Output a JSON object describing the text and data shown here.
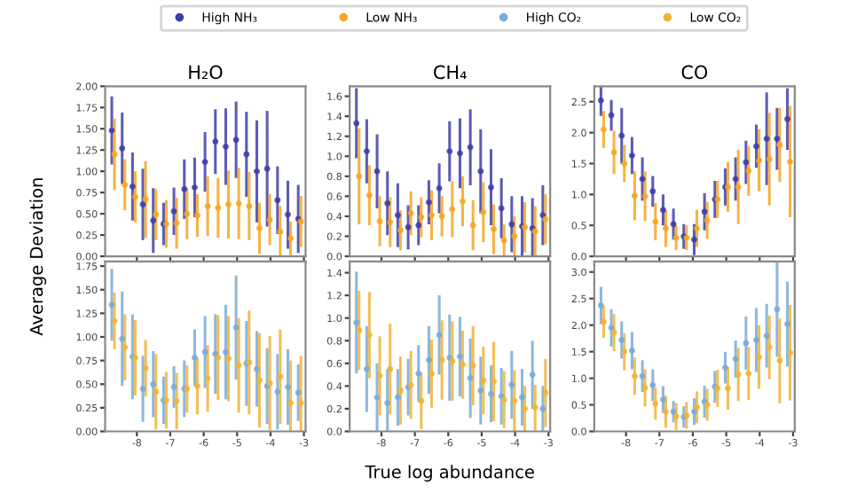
{
  "chart_data": [
    {
      "type": "scatter",
      "title": "H₂O",
      "ylabel": "Average Deviation",
      "x": [
        -8.75,
        -8.44,
        -8.13,
        -7.82,
        -7.51,
        -7.2,
        -6.89,
        -6.58,
        -6.27,
        -5.96,
        -5.65,
        -5.34,
        -5.03,
        -4.72,
        -4.41,
        -4.1,
        -3.79,
        -3.48,
        -3.17
      ],
      "xlim": [
        -8.95,
        -2.95
      ],
      "xticks": [
        -8,
        -7,
        -6,
        -5,
        -4,
        -3
      ],
      "ylim": [
        0,
        2.0
      ],
      "yticks": [
        {
          "value": 0,
          "label": "0.00"
        },
        {
          "value": 0.25,
          "label": "0.25"
        },
        {
          "value": 0.5,
          "label": "0.50"
        },
        {
          "value": 0.75,
          "label": "0.75"
        },
        {
          "value": 1.0,
          "label": "1.00"
        },
        {
          "value": 1.25,
          "label": "1.25"
        },
        {
          "value": 1.5,
          "label": "1.50"
        },
        {
          "value": 1.75,
          "label": "1.75"
        },
        {
          "value": 2.0,
          "label": "2.00"
        }
      ],
      "tick_labels": "y",
      "marker": "circle",
      "grid": false,
      "legend": "top",
      "series": [
        {
          "name": "High NH₃",
          "color": "#3f3fa8",
          "values": [
            1.48,
            1.27,
            0.82,
            0.61,
            0.42,
            0.38,
            0.53,
            0.79,
            0.81,
            1.11,
            1.35,
            1.29,
            1.37,
            1.2,
            1.0,
            1.03,
            0.66,
            0.49,
            0.44
          ],
          "errors": [
            0.4,
            0.42,
            0.4,
            0.42,
            0.38,
            0.25,
            0.28,
            0.35,
            0.35,
            0.35,
            0.38,
            0.45,
            0.45,
            0.5,
            0.6,
            0.68,
            0.4,
            0.4,
            0.4
          ]
        },
        {
          "name": "Low NH₃",
          "color": "#f5a623",
          "x": [
            -8.67,
            -8.36,
            -8.05,
            -7.74,
            -7.43,
            -7.12,
            -6.81,
            -6.5,
            -6.19,
            -5.88,
            -5.57,
            -5.26,
            -4.95,
            -4.64,
            -4.33,
            -4.02,
            -3.71,
            -3.4,
            -3.09
          ],
          "values": [
            1.2,
            0.84,
            0.7,
            0.67,
            0.49,
            0.38,
            0.39,
            0.5,
            0.48,
            0.59,
            0.57,
            0.61,
            0.62,
            0.59,
            0.33,
            0.43,
            0.29,
            0.21,
            0.41
          ],
          "errors": [
            0.42,
            0.3,
            0.3,
            0.45,
            0.3,
            0.28,
            0.3,
            0.3,
            0.25,
            0.35,
            0.35,
            0.4,
            0.42,
            0.4,
            0.3,
            0.3,
            0.3,
            0.2,
            0.3
          ]
        }
      ]
    },
    {
      "type": "scatter",
      "title": "CH₄",
      "x": [
        -8.75,
        -8.44,
        -8.13,
        -7.82,
        -7.51,
        -7.2,
        -6.89,
        -6.58,
        -6.27,
        -5.96,
        -5.65,
        -5.34,
        -5.03,
        -4.72,
        -4.41,
        -4.1,
        -3.79,
        -3.48,
        -3.17
      ],
      "xlim": [
        -8.95,
        -2.95
      ],
      "xticks": [
        -8,
        -7,
        -6,
        -5,
        -4,
        -3
      ],
      "ylim": [
        0,
        1.7
      ],
      "yticks": [
        {
          "value": 0,
          "label": "0.0"
        },
        {
          "value": 0.2,
          "label": "0.2"
        },
        {
          "value": 0.4,
          "label": "0.4"
        },
        {
          "value": 0.6,
          "label": "0.6"
        },
        {
          "value": 0.8,
          "label": "0.8"
        },
        {
          "value": 1.0,
          "label": "1.0"
        },
        {
          "value": 1.2,
          "label": "1.2"
        },
        {
          "value": 1.4,
          "label": "1.4"
        },
        {
          "value": 1.6,
          "label": "1.6"
        }
      ],
      "tick_labels": "y",
      "marker": "circle",
      "grid": false,
      "series": [
        {
          "name": "High NH₃",
          "color": "#3f3fa8",
          "values": [
            1.33,
            1.05,
            0.85,
            0.53,
            0.41,
            0.29,
            0.31,
            0.54,
            0.68,
            1.05,
            1.03,
            1.09,
            0.85,
            0.69,
            0.48,
            0.32,
            0.3,
            0.28,
            0.41
          ],
          "errors": [
            0.35,
            0.32,
            0.37,
            0.32,
            0.32,
            0.22,
            0.2,
            0.22,
            0.25,
            0.3,
            0.35,
            0.38,
            0.42,
            0.38,
            0.3,
            0.28,
            0.3,
            0.3,
            0.3
          ]
        },
        {
          "name": "Low NH₃",
          "color": "#f5a623",
          "x": [
            -8.67,
            -8.36,
            -8.05,
            -7.74,
            -7.43,
            -7.12,
            -6.81,
            -6.5,
            -6.19,
            -5.88,
            -5.57,
            -5.26,
            -4.95,
            -4.64,
            -4.33,
            -4.02,
            -3.71,
            -3.4,
            -3.09
          ],
          "values": [
            0.8,
            0.61,
            0.35,
            0.34,
            0.26,
            0.43,
            0.39,
            0.41,
            0.4,
            0.47,
            0.55,
            0.31,
            0.44,
            0.27,
            0.16,
            0.2,
            0.29,
            0.25,
            0.37
          ],
          "errors": [
            0.48,
            0.3,
            0.25,
            0.25,
            0.2,
            0.22,
            0.2,
            0.25,
            0.2,
            0.28,
            0.25,
            0.25,
            0.3,
            0.25,
            0.16,
            0.2,
            0.25,
            0.25,
            0.25
          ]
        }
      ]
    },
    {
      "type": "scatter",
      "title": "CO",
      "x": [
        -8.75,
        -8.44,
        -8.13,
        -7.82,
        -7.51,
        -7.2,
        -6.89,
        -6.58,
        -6.27,
        -5.96,
        -5.65,
        -5.34,
        -5.03,
        -4.72,
        -4.41,
        -4.1,
        -3.79,
        -3.48,
        -3.17
      ],
      "xlim": [
        -8.95,
        -2.95
      ],
      "xticks": [
        -8,
        -7,
        -6,
        -5,
        -4,
        -3
      ],
      "ylim": [
        0,
        2.75
      ],
      "yticks": [
        {
          "value": 0,
          "label": "0.0"
        },
        {
          "value": 0.5,
          "label": "0.5"
        },
        {
          "value": 1.0,
          "label": "1.0"
        },
        {
          "value": 1.5,
          "label": "1.5"
        },
        {
          "value": 2.0,
          "label": "2.0"
        },
        {
          "value": 2.5,
          "label": "2.5"
        }
      ],
      "tick_labels": "y",
      "marker": "circle",
      "grid": false,
      "series": [
        {
          "name": "High NH₃",
          "color": "#3f3fa8",
          "values": [
            2.52,
            2.28,
            1.95,
            1.63,
            1.25,
            1.05,
            0.75,
            0.52,
            0.32,
            0.27,
            0.72,
            0.92,
            1.12,
            1.25,
            1.52,
            1.78,
            1.9,
            1.9,
            2.22
          ],
          "errors": [
            0.25,
            0.25,
            0.45,
            0.3,
            0.35,
            0.25,
            0.25,
            0.25,
            0.2,
            0.25,
            0.3,
            0.3,
            0.3,
            0.35,
            0.35,
            0.35,
            0.75,
            0.5,
            0.5
          ]
        },
        {
          "name": "Low NH₃",
          "color": "#f5a623",
          "x": [
            -8.67,
            -8.36,
            -8.05,
            -7.74,
            -7.43,
            -7.12,
            -6.81,
            -6.5,
            -6.19,
            -5.88,
            -5.57,
            -5.26,
            -4.95,
            -4.64,
            -4.33,
            -4.02,
            -3.71,
            -3.4,
            -3.09
          ],
          "values": [
            2.05,
            1.68,
            1.5,
            0.98,
            0.97,
            0.56,
            0.45,
            0.3,
            0.3,
            0.45,
            0.58,
            0.92,
            1.12,
            1.12,
            1.38,
            1.55,
            1.57,
            1.8,
            1.53
          ],
          "errors": [
            0.3,
            0.35,
            0.3,
            0.4,
            0.4,
            0.3,
            0.3,
            0.2,
            0.2,
            0.3,
            0.3,
            0.3,
            0.4,
            0.6,
            0.4,
            0.5,
            0.75,
            0.6,
            0.9
          ]
        }
      ]
    },
    {
      "type": "scatter",
      "x": [
        -8.75,
        -8.44,
        -8.13,
        -7.82,
        -7.51,
        -7.2,
        -6.89,
        -6.58,
        -6.27,
        -5.96,
        -5.65,
        -5.34,
        -5.03,
        -4.72,
        -4.41,
        -4.1,
        -3.79,
        -3.48,
        -3.17
      ],
      "xlim": [
        -8.95,
        -2.95
      ],
      "xticks": [
        -8,
        -7,
        -6,
        -5,
        -4,
        -3
      ],
      "ylim": [
        0,
        1.8
      ],
      "yticks": [
        {
          "value": 0,
          "label": "0.00"
        },
        {
          "value": 0.25,
          "label": "0.25"
        },
        {
          "value": 0.5,
          "label": "0.50"
        },
        {
          "value": 0.75,
          "label": "0.75"
        },
        {
          "value": 1.0,
          "label": "1.00"
        },
        {
          "value": 1.25,
          "label": "1.25"
        },
        {
          "value": 1.5,
          "label": "1.50"
        },
        {
          "value": 1.75,
          "label": "1.75"
        }
      ],
      "marker": "circle",
      "grid": false,
      "legend": "top",
      "series": [
        {
          "name": "High CO₂",
          "color": "#7aaad6",
          "values": [
            1.34,
            0.98,
            0.79,
            0.45,
            0.5,
            0.33,
            0.47,
            0.45,
            0.78,
            0.84,
            0.82,
            0.84,
            1.1,
            0.72,
            0.66,
            0.48,
            0.42,
            0.47,
            0.41
          ],
          "errors": [
            0.38,
            0.5,
            0.45,
            0.35,
            0.35,
            0.25,
            0.22,
            0.3,
            0.3,
            0.38,
            0.42,
            0.5,
            0.55,
            0.45,
            0.4,
            0.4,
            0.4,
            0.4,
            0.3
          ]
        },
        {
          "name": "Low CO₂",
          "color": "#eeb43a",
          "x": [
            -8.67,
            -8.36,
            -8.05,
            -7.74,
            -7.43,
            -7.12,
            -6.81,
            -6.5,
            -6.19,
            -5.88,
            -5.57,
            -5.26,
            -4.95,
            -4.64,
            -4.33,
            -4.02,
            -3.71,
            -3.4,
            -3.09
          ],
          "values": [
            1.17,
            0.89,
            0.78,
            0.67,
            0.42,
            0.33,
            0.32,
            0.45,
            0.48,
            0.56,
            0.78,
            0.77,
            0.7,
            0.73,
            0.54,
            0.51,
            0.58,
            0.3,
            0.3
          ],
          "errors": [
            0.3,
            0.35,
            0.4,
            0.3,
            0.4,
            0.3,
            0.3,
            0.25,
            0.3,
            0.35,
            0.45,
            0.45,
            0.5,
            0.55,
            0.5,
            0.5,
            0.5,
            0.45,
            0.5
          ]
        }
      ]
    },
    {
      "type": "scatter",
      "xlabel": "True log abundance",
      "x": [
        -8.75,
        -8.44,
        -8.13,
        -7.82,
        -7.51,
        -7.2,
        -6.89,
        -6.58,
        -6.27,
        -5.96,
        -5.65,
        -5.34,
        -5.03,
        -4.72,
        -4.41,
        -4.1,
        -3.79,
        -3.48,
        -3.17
      ],
      "xlim": [
        -8.95,
        -2.95
      ],
      "xticks": [
        -8,
        -7,
        -6,
        -5,
        -4,
        -3
      ],
      "ylim": [
        0,
        1.5
      ],
      "yticks": [
        {
          "value": 0,
          "label": "0.0"
        },
        {
          "value": 0.2,
          "label": "0.2"
        },
        {
          "value": 0.4,
          "label": "0.4"
        },
        {
          "value": 0.6,
          "label": "0.6"
        },
        {
          "value": 0.8,
          "label": "0.8"
        },
        {
          "value": 1.0,
          "label": "1.0"
        },
        {
          "value": 1.2,
          "label": "1.2"
        },
        {
          "value": 1.4,
          "label": "1.4"
        }
      ],
      "marker": "circle",
      "grid": false,
      "series": [
        {
          "name": "High CO₂",
          "color": "#7aaad6",
          "values": [
            0.96,
            0.55,
            0.3,
            0.25,
            0.3,
            0.39,
            0.51,
            0.63,
            0.85,
            0.65,
            0.66,
            0.47,
            0.36,
            0.33,
            0.31,
            0.41,
            0.3,
            0.5,
            0.2
          ],
          "errors": [
            0.45,
            0.38,
            0.3,
            0.3,
            0.25,
            0.25,
            0.25,
            0.3,
            0.35,
            0.38,
            0.35,
            0.35,
            0.3,
            0.25,
            0.25,
            0.3,
            0.25,
            0.3,
            0.2
          ]
        },
        {
          "name": "Low CO₂",
          "color": "#eeb43a",
          "x": [
            -8.67,
            -8.36,
            -8.05,
            -7.74,
            -7.43,
            -7.12,
            -6.81,
            -6.5,
            -6.19,
            -5.88,
            -5.57,
            -5.26,
            -4.95,
            -4.64,
            -4.33,
            -4.02,
            -3.71,
            -3.4,
            -3.09
          ],
          "values": [
            0.89,
            0.85,
            0.49,
            0.55,
            0.36,
            0.41,
            0.27,
            0.51,
            0.63,
            0.62,
            0.59,
            0.58,
            0.45,
            0.44,
            0.28,
            0.27,
            0.2,
            0.21,
            0.34
          ],
          "errors": [
            0.35,
            0.38,
            0.35,
            0.4,
            0.3,
            0.3,
            0.25,
            0.3,
            0.35,
            0.35,
            0.3,
            0.35,
            0.3,
            0.35,
            0.25,
            0.27,
            0.2,
            0.2,
            0.3
          ]
        }
      ]
    },
    {
      "type": "scatter",
      "x": [
        -8.75,
        -8.44,
        -8.13,
        -7.82,
        -7.51,
        -7.2,
        -6.89,
        -6.58,
        -6.27,
        -5.96,
        -5.65,
        -5.34,
        -5.03,
        -4.72,
        -4.41,
        -4.1,
        -3.79,
        -3.48,
        -3.17
      ],
      "xlim": [
        -8.95,
        -2.95
      ],
      "xticks": [
        -8,
        -7,
        -6,
        -5,
        -4,
        -3
      ],
      "ylim": [
        0,
        3.2
      ],
      "yticks": [
        {
          "value": 0,
          "label": "0.0"
        },
        {
          "value": 0.5,
          "label": "0.5"
        },
        {
          "value": 1.0,
          "label": "1.0"
        },
        {
          "value": 1.5,
          "label": "1.5"
        },
        {
          "value": 2.0,
          "label": "2.0"
        },
        {
          "value": 2.5,
          "label": "2.5"
        },
        {
          "value": 3.0,
          "label": "3.0"
        }
      ],
      "marker": "circle",
      "grid": false,
      "series": [
        {
          "name": "High CO₂",
          "color": "#7aaad6",
          "values": [
            2.37,
            1.95,
            1.72,
            1.52,
            1.04,
            0.87,
            0.6,
            0.37,
            0.27,
            0.37,
            0.56,
            0.84,
            1.2,
            1.36,
            1.66,
            1.72,
            1.8,
            2.3,
            2.02
          ],
          "errors": [
            0.35,
            0.35,
            0.35,
            0.35,
            0.3,
            0.3,
            0.25,
            0.2,
            0.2,
            0.25,
            0.3,
            0.3,
            0.3,
            0.35,
            0.5,
            0.6,
            0.6,
            0.9,
            0.8
          ]
        },
        {
          "name": "Low CO₂",
          "color": "#eeb43a",
          "x": [
            -8.67,
            -8.36,
            -8.05,
            -7.74,
            -7.43,
            -7.12,
            -6.81,
            -6.5,
            -6.19,
            -5.88,
            -5.57,
            -5.26,
            -4.95,
            -4.64,
            -4.33,
            -4.02,
            -3.71,
            -3.4,
            -3.09
          ],
          "values": [
            2.06,
            1.86,
            1.5,
            1.04,
            0.82,
            0.52,
            0.37,
            0.28,
            0.3,
            0.45,
            0.5,
            0.81,
            0.81,
            1.07,
            1.09,
            1.4,
            1.58,
            1.33,
            1.48
          ],
          "errors": [
            0.3,
            0.35,
            0.35,
            0.35,
            0.35,
            0.3,
            0.3,
            0.25,
            0.25,
            0.3,
            0.3,
            0.35,
            0.4,
            0.5,
            0.5,
            0.6,
            0.6,
            0.8,
            0.9
          ]
        }
      ]
    }
  ]
}
